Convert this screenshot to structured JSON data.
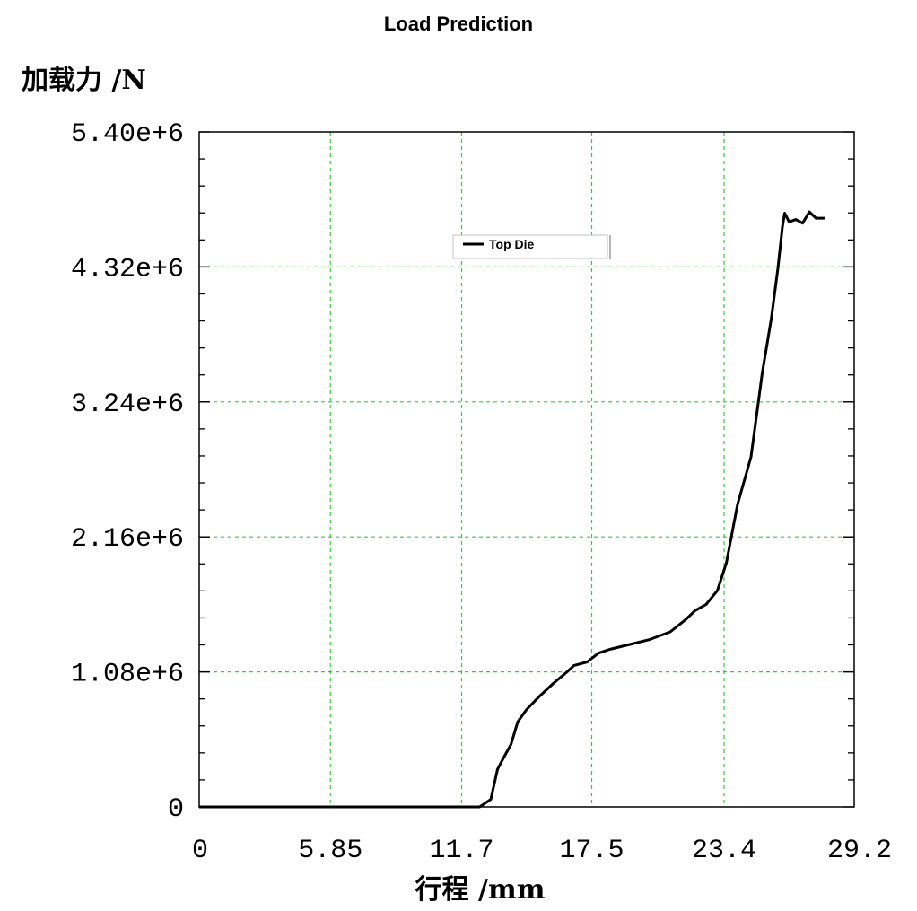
{
  "chart_data": {
    "type": "line",
    "title": "Load Prediction",
    "ylabel": "加载力 /N",
    "xlabel": "行程 /mm",
    "xlim": [
      0,
      29.2
    ],
    "ylim": [
      0,
      5400000
    ],
    "x_ticks": [
      "0",
      "5.85",
      "11.7",
      "17.5",
      "23.4",
      "29.2"
    ],
    "x_tick_values": [
      0,
      5.85,
      11.7,
      17.5,
      23.4,
      29.2
    ],
    "y_ticks": [
      "0",
      "1.08e+6",
      "2.16e+6",
      "3.24e+6",
      "4.32e+6",
      "5.40e+6"
    ],
    "y_tick_values": [
      0,
      1080000,
      2160000,
      3240000,
      4320000,
      5400000
    ],
    "grid": true,
    "grid_color": "#33cc33",
    "line_color": "#000000",
    "legend_position": "top-center",
    "series": [
      {
        "name": "Top Die",
        "x": [
          0,
          5,
          10,
          12.5,
          13.0,
          13.3,
          13.5,
          13.9,
          14.2,
          14.6,
          15.2,
          15.8,
          16.4,
          16.7,
          17.3,
          17.8,
          18.3,
          19.2,
          20.1,
          21.0,
          21.7,
          22.1,
          22.6,
          23.1,
          23.5,
          24.0,
          24.6,
          25.1,
          25.5,
          25.8,
          26.0,
          26.1,
          26.3,
          26.6,
          26.9,
          27.2,
          27.5,
          27.9
        ],
        "y": [
          0,
          0,
          0,
          0,
          60000,
          300000,
          370000,
          500000,
          680000,
          780000,
          890000,
          990000,
          1080000,
          1130000,
          1160000,
          1230000,
          1260000,
          1300000,
          1340000,
          1400000,
          1500000,
          1570000,
          1620000,
          1730000,
          1950000,
          2420000,
          2800000,
          3470000,
          3900000,
          4310000,
          4640000,
          4750000,
          4680000,
          4700000,
          4670000,
          4760000,
          4710000,
          4710000
        ]
      }
    ]
  }
}
